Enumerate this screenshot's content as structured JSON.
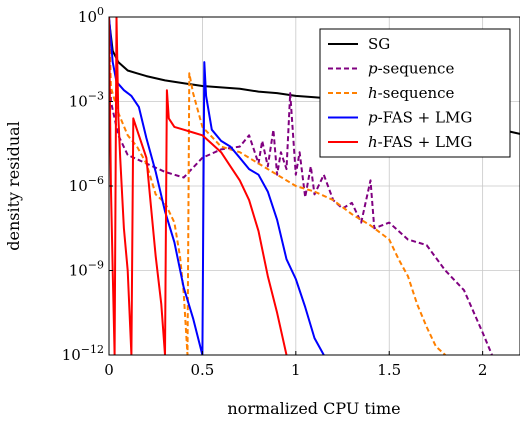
{
  "chart_data": {
    "type": "line",
    "xlabel": "normalized CPU time",
    "ylabel": "density residual",
    "xlim": [
      0,
      2.2
    ],
    "ylim_exponent": [
      -12,
      0
    ],
    "y_scale": "log",
    "x_ticks": [
      "0",
      "0.5",
      "1",
      "1.5",
      "2"
    ],
    "x_tick_values": [
      0,
      0.5,
      1,
      1.5,
      2
    ],
    "y_ticks": [
      {
        "base": "10",
        "exp": "0"
      },
      {
        "base": "10",
        "exp": "−3"
      },
      {
        "base": "10",
        "exp": "−6"
      },
      {
        "base": "10",
        "exp": "−9"
      },
      {
        "base": "10",
        "exp": "−12"
      }
    ],
    "y_tick_values": [
      0,
      -3,
      -6,
      -9,
      -12
    ],
    "grid": true,
    "legend_position": "top-right",
    "legend": [
      {
        "label": "SG",
        "italic_prefix": "",
        "color": "#000000",
        "dash": "solid"
      },
      {
        "label": "-sequence",
        "italic_prefix": "p",
        "color": "#800080",
        "dash": "dashed"
      },
      {
        "label": "-sequence",
        "italic_prefix": "h",
        "color": "#ff8000",
        "dash": "dashed"
      },
      {
        "label": "-FAS + LMG",
        "italic_prefix": "p",
        "color": "#0000ff",
        "dash": "solid"
      },
      {
        "label": "-FAS + LMG",
        "italic_prefix": "h",
        "color": "#ff0000",
        "dash": "solid"
      }
    ],
    "series_note": "y values are log10(density residual)",
    "series": [
      {
        "legend_index": 0,
        "color": "#000000",
        "dash": "solid",
        "points": [
          [
            0,
            -0.1
          ],
          [
            0.02,
            -1.2
          ],
          [
            0.05,
            -1.6
          ],
          [
            0.1,
            -1.9
          ],
          [
            0.15,
            -2.0
          ],
          [
            0.2,
            -2.1
          ],
          [
            0.3,
            -2.25
          ],
          [
            0.4,
            -2.35
          ],
          [
            0.5,
            -2.45
          ],
          [
            0.6,
            -2.5
          ],
          [
            0.7,
            -2.55
          ],
          [
            0.8,
            -2.65
          ],
          [
            0.9,
            -2.7
          ],
          [
            1.0,
            -2.8
          ],
          [
            1.1,
            -2.85
          ],
          [
            1.2,
            -2.9
          ],
          [
            1.3,
            -2.95
          ],
          [
            1.4,
            -3.0
          ],
          [
            1.5,
            -3.15
          ],
          [
            1.6,
            -3.3
          ],
          [
            1.7,
            -3.45
          ],
          [
            1.8,
            -3.6
          ],
          [
            1.9,
            -3.75
          ],
          [
            2.0,
            -3.9
          ],
          [
            2.1,
            -4.0
          ],
          [
            2.2,
            -4.15
          ]
        ]
      },
      {
        "legend_index": 1,
        "color": "#800080",
        "dash": "dashed",
        "points": [
          [
            0.0,
            0
          ],
          [
            0.01,
            -3
          ],
          [
            0.05,
            -4.2
          ],
          [
            0.1,
            -4.9
          ],
          [
            0.2,
            -5.2
          ],
          [
            0.3,
            -5.5
          ],
          [
            0.4,
            -5.7
          ],
          [
            0.5,
            -5.0
          ],
          [
            0.6,
            -4.7
          ],
          [
            0.7,
            -4.6
          ],
          [
            0.75,
            -4.2
          ],
          [
            0.8,
            -5.2
          ],
          [
            0.82,
            -4.4
          ],
          [
            0.85,
            -5.3
          ],
          [
            0.88,
            -4.0
          ],
          [
            0.9,
            -5.6
          ],
          [
            0.92,
            -4.8
          ],
          [
            0.95,
            -5.4
          ],
          [
            0.97,
            -2.7
          ],
          [
            1.0,
            -5.6
          ],
          [
            1.02,
            -4.8
          ],
          [
            1.05,
            -6.4
          ],
          [
            1.08,
            -5.3
          ],
          [
            1.1,
            -6.3
          ],
          [
            1.15,
            -5.6
          ],
          [
            1.2,
            -6.5
          ],
          [
            1.25,
            -6.8
          ],
          [
            1.3,
            -6.6
          ],
          [
            1.35,
            -7.3
          ],
          [
            1.4,
            -5.8
          ],
          [
            1.42,
            -7.5
          ],
          [
            1.5,
            -7.3
          ],
          [
            1.6,
            -7.9
          ],
          [
            1.7,
            -8.1
          ],
          [
            1.8,
            -9.0
          ],
          [
            1.9,
            -9.7
          ],
          [
            2.0,
            -11.2
          ],
          [
            2.05,
            -12
          ]
        ]
      },
      {
        "legend_index": 2,
        "color": "#ff8000",
        "dash": "dashed",
        "points": [
          [
            0.0,
            0
          ],
          [
            0.01,
            -2.5
          ],
          [
            0.05,
            -3.4
          ],
          [
            0.1,
            -4.2
          ],
          [
            0.15,
            -4.6
          ],
          [
            0.2,
            -5.2
          ],
          [
            0.25,
            -6.3
          ],
          [
            0.3,
            -6.6
          ],
          [
            0.35,
            -7.3
          ],
          [
            0.38,
            -8.5
          ],
          [
            0.4,
            -9.8
          ],
          [
            0.42,
            -12
          ],
          [
            0.43,
            -2.0
          ],
          [
            0.45,
            -2.7
          ],
          [
            0.5,
            -3.9
          ],
          [
            0.6,
            -4.6
          ],
          [
            0.7,
            -4.8
          ],
          [
            0.8,
            -5.2
          ],
          [
            0.9,
            -5.6
          ],
          [
            1.0,
            -6.0
          ],
          [
            1.1,
            -6.2
          ],
          [
            1.2,
            -6.5
          ],
          [
            1.3,
            -7.0
          ],
          [
            1.4,
            -7.4
          ],
          [
            1.5,
            -7.9
          ],
          [
            1.55,
            -8.6
          ],
          [
            1.6,
            -9.2
          ],
          [
            1.65,
            -10.2
          ],
          [
            1.7,
            -11.0
          ],
          [
            1.75,
            -11.7
          ],
          [
            1.8,
            -12
          ]
        ]
      },
      {
        "legend_index": 3,
        "color": "#0000ff",
        "dash": "solid",
        "points": [
          [
            0.0,
            0
          ],
          [
            0.02,
            -1.6
          ],
          [
            0.04,
            -2.3
          ],
          [
            0.08,
            -2.6
          ],
          [
            0.12,
            -2.8
          ],
          [
            0.16,
            -3.2
          ],
          [
            0.2,
            -4.3
          ],
          [
            0.25,
            -5.5
          ],
          [
            0.3,
            -6.9
          ],
          [
            0.35,
            -8.0
          ],
          [
            0.4,
            -9.6
          ],
          [
            0.45,
            -10.7
          ],
          [
            0.5,
            -12
          ],
          [
            0.51,
            -1.6
          ],
          [
            0.52,
            -2.8
          ],
          [
            0.55,
            -4.0
          ],
          [
            0.6,
            -4.4
          ],
          [
            0.65,
            -4.6
          ],
          [
            0.7,
            -5.0
          ],
          [
            0.75,
            -5.4
          ],
          [
            0.8,
            -5.6
          ],
          [
            0.85,
            -6.2
          ],
          [
            0.9,
            -7.2
          ],
          [
            0.95,
            -8.6
          ],
          [
            1.0,
            -9.3
          ],
          [
            1.05,
            -10.3
          ],
          [
            1.1,
            -11.4
          ],
          [
            1.15,
            -12
          ]
        ]
      },
      {
        "legend_index": 4,
        "color": "#ff0000",
        "dash": "solid",
        "points": [
          [
            0.0,
            0
          ],
          [
            0.01,
            -6
          ],
          [
            0.02,
            -9
          ],
          [
            0.03,
            -12
          ],
          [
            0.04,
            0
          ],
          [
            0.05,
            -3.5
          ],
          [
            0.06,
            -5.0
          ],
          [
            0.08,
            -7.5
          ],
          [
            0.1,
            -9.0
          ],
          [
            0.12,
            -12
          ],
          [
            0.13,
            -3.6
          ],
          [
            0.15,
            -4.0
          ],
          [
            0.2,
            -5.0
          ],
          [
            0.22,
            -6.4
          ],
          [
            0.25,
            -8.5
          ],
          [
            0.28,
            -10.2
          ],
          [
            0.3,
            -12
          ],
          [
            0.31,
            -2.6
          ],
          [
            0.32,
            -3.6
          ],
          [
            0.35,
            -3.9
          ],
          [
            0.4,
            -4.0
          ],
          [
            0.45,
            -4.1
          ],
          [
            0.5,
            -4.2
          ],
          [
            0.55,
            -4.5
          ],
          [
            0.6,
            -4.8
          ],
          [
            0.65,
            -5.3
          ],
          [
            0.7,
            -5.8
          ],
          [
            0.75,
            -6.5
          ],
          [
            0.8,
            -7.6
          ],
          [
            0.85,
            -9.2
          ],
          [
            0.9,
            -10.5
          ],
          [
            0.95,
            -12
          ]
        ]
      }
    ]
  }
}
